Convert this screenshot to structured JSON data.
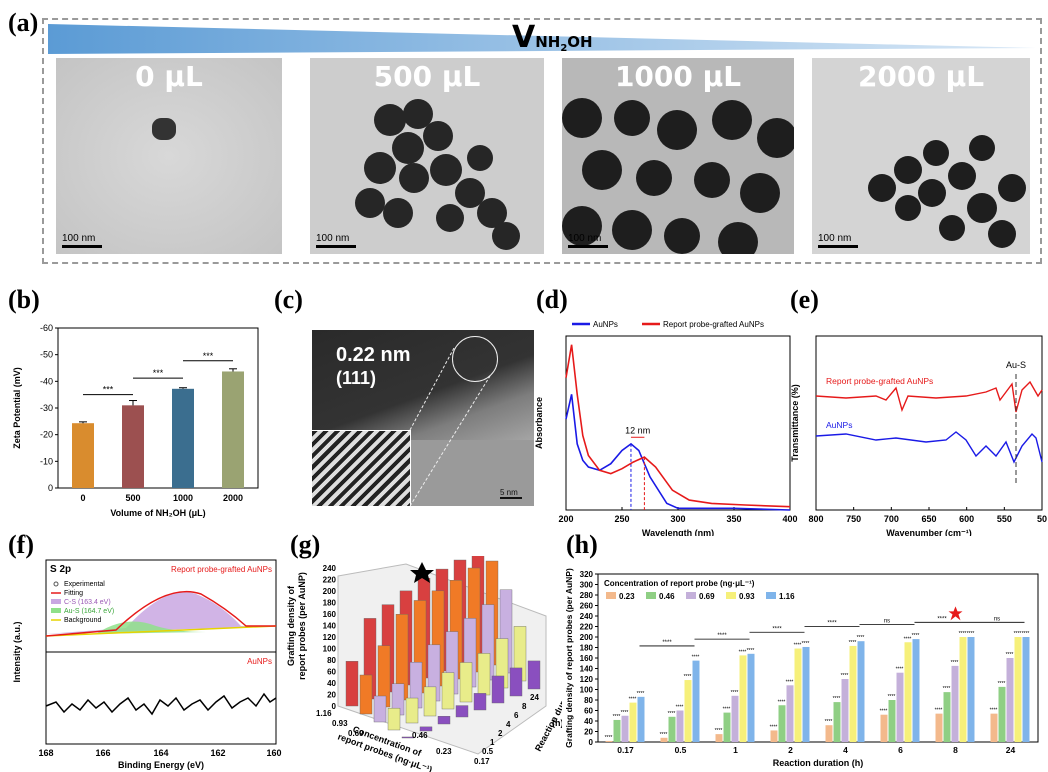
{
  "panel_labels": [
    "(a)",
    "(b)",
    "(c)",
    "(d)",
    "(e)",
    "(f)",
    "(g)",
    "(h)"
  ],
  "a": {
    "header_v": "V",
    "header_sub": "NH",
    "header_sub2": "2",
    "header_sub3": "OH",
    "images": [
      {
        "label": "0 μL",
        "scale": "100 nm"
      },
      {
        "label": "500 μL",
        "scale": "100 nm"
      },
      {
        "label": "1000 μL",
        "scale": "100 nm"
      },
      {
        "label": "2000 μL",
        "scale": "100 nm"
      }
    ]
  },
  "c": {
    "spacing": "0.22 nm",
    "plane": "(111)",
    "scale": "5 nm"
  },
  "f": {
    "title": "S 2p",
    "top_label": "Report probe-grafted AuNPs",
    "bottom_label": "AuNPs",
    "legend": [
      "Experimental",
      "Fitting",
      "C-S (163.4 eV)",
      "Au-S (164.7 eV)",
      "Background"
    ],
    "ylabel": "Intensity (a.u.)",
    "xlabel": "Binding Energy (eV)",
    "xticks": [
      "168",
      "166",
      "164",
      "162",
      "160"
    ]
  },
  "g": {
    "ylabel1": "Grafting density of",
    "ylabel2": "report probes (per AuNP)",
    "yticks": [
      "0",
      "20",
      "40",
      "60",
      "80",
      "100",
      "120",
      "140",
      "160",
      "180",
      "200",
      "220",
      "240"
    ],
    "xlabel1": "Concentration of",
    "xlabel2": "report probes (ng·μL⁻¹)",
    "xticks": [
      "1.16",
      "0.93",
      "0.69",
      "0.46",
      "0.23"
    ],
    "zlabel1": "Reaction duration",
    "zlabel2": "(h)",
    "zticks": [
      "0.17",
      "0.5",
      "1",
      "2",
      "4",
      "6",
      "8",
      "24"
    ]
  },
  "chart_data": [
    {
      "type": "bar",
      "panel": "b",
      "categories": [
        "0",
        "500",
        "1000",
        "2000"
      ],
      "values": [
        -24.3,
        -31.0,
        -37.2,
        -43.7
      ],
      "errors": [
        0.5,
        1.8,
        0.4,
        1.0
      ],
      "colors": [
        "#d98c2e",
        "#9c5050",
        "#3b6e8f",
        "#9aa372"
      ],
      "xlabel": "Volume of NH₂OH (μL)",
      "ylabel": "Zeta Potential (mV)",
      "ylim": [
        0,
        -60
      ],
      "yticks": [
        "0",
        "-10",
        "-20",
        "-30",
        "-40",
        "-50",
        "-60"
      ],
      "significance": [
        "***",
        "***",
        "***"
      ]
    },
    {
      "type": "line",
      "panel": "d",
      "xlabel": "Wavelength (nm)",
      "ylabel": "Absorbance",
      "xlim": [
        200,
        400
      ],
      "xticks": [
        "200",
        "250",
        "300",
        "350",
        "400"
      ],
      "annotation": "12 nm",
      "series": [
        {
          "name": "AuNPs",
          "color": "#1a1ae6",
          "x": [
            200,
            205,
            210,
            215,
            220,
            230,
            240,
            250,
            258,
            265,
            275,
            290,
            300,
            320,
            350,
            400
          ],
          "y": [
            0.55,
            0.7,
            0.4,
            0.3,
            0.26,
            0.24,
            0.28,
            0.36,
            0.4,
            0.36,
            0.2,
            0.04,
            0.01,
            0.01,
            0.01,
            0.0
          ]
        },
        {
          "name": "Report probe-grafted AuNPs",
          "color": "#e61a1a",
          "x": [
            200,
            205,
            210,
            215,
            220,
            230,
            240,
            250,
            260,
            270,
            280,
            295,
            310,
            330,
            360,
            400
          ],
          "y": [
            0.8,
            1.0,
            0.7,
            0.45,
            0.33,
            0.24,
            0.22,
            0.25,
            0.29,
            0.32,
            0.26,
            0.12,
            0.06,
            0.04,
            0.03,
            0.02
          ]
        }
      ],
      "peaks": {
        "AuNPs": 258,
        "Report probe-grafted AuNPs": 270
      }
    },
    {
      "type": "line",
      "panel": "e",
      "xlabel": "Wavenumber (cm⁻¹)",
      "ylabel": "Transmittance (%)",
      "xlim": [
        800,
        500
      ],
      "xticks": [
        "800",
        "750",
        "700",
        "650",
        "600",
        "550",
        "50"
      ],
      "annotation": "Au-S",
      "series": [
        {
          "name": "Report probe-grafted AuNPs",
          "color": "#e61a1a"
        },
        {
          "name": "AuNPs",
          "color": "#1a1ae6"
        }
      ]
    },
    {
      "type": "bar",
      "panel": "h",
      "title": "Concentration of report probe (ng·μL⁻¹)",
      "xlabel": "Reaction duration (h)",
      "ylabel": "Grafting density of report probes (per AuNP)",
      "categories": [
        "0.17",
        "0.5",
        "1",
        "2",
        "4",
        "6",
        "8",
        "24"
      ],
      "ylim": [
        0,
        320
      ],
      "yticks": [
        "0",
        "20",
        "40",
        "60",
        "80",
        "100",
        "120",
        "140",
        "160",
        "180",
        "200",
        "220",
        "240",
        "260",
        "280",
        "300",
        "320"
      ],
      "series": [
        {
          "name": "0.23",
          "color": "#f3b98c",
          "values": [
            2,
            8,
            15,
            22,
            32,
            52,
            54,
            54
          ]
        },
        {
          "name": "0.46",
          "color": "#8fcf84",
          "values": [
            42,
            48,
            56,
            70,
            76,
            80,
            95,
            105
          ]
        },
        {
          "name": "0.69",
          "color": "#c4b0da",
          "values": [
            50,
            60,
            88,
            108,
            120,
            132,
            145,
            160
          ]
        },
        {
          "name": "0.93",
          "color": "#f6f07a",
          "values": [
            75,
            118,
            165,
            178,
            183,
            190,
            200,
            200
          ]
        },
        {
          "name": "1.16",
          "color": "#7fb4ea",
          "values": [
            86,
            155,
            168,
            181,
            192,
            196,
            200,
            200
          ]
        }
      ],
      "significance_labels": [
        "****",
        "ns"
      ]
    }
  ]
}
